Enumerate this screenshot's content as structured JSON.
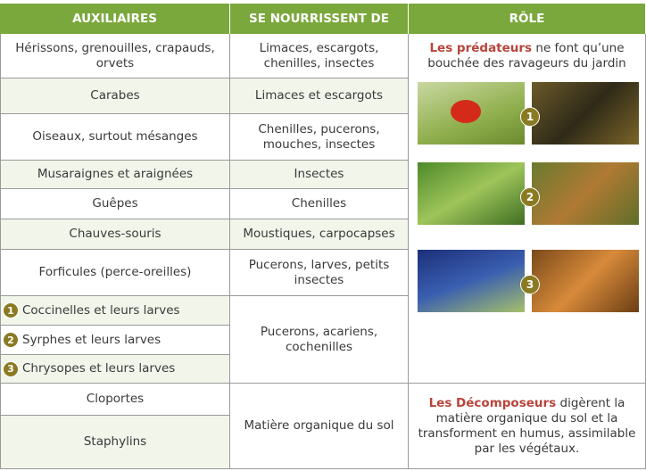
{
  "header": [
    "AUXILIAIRES",
    "SE NOURRISSENT DE",
    "RÔLE"
  ],
  "auxiliaries": [
    "Hérissons, grenouilles, crapauds, orvets",
    "Carabes",
    "Oiseaux, surtout mésanges",
    "Musaraignes et araignées",
    "Guêpes",
    "Chauves-souris",
    "Forficules (perce-oreilles)",
    "Coccinelles et leurs larves",
    "Syrphes et leurs larves",
    "Chrysopes et leurs larves",
    "Cloportes",
    "Staphylins"
  ],
  "badges": [
    "1",
    "2",
    "3"
  ],
  "food": [
    "Limaces, escargots, chenilles, insectes",
    "Limaces et escargots",
    "Chenilles, pucerons, mouches, insectes",
    "Insectes",
    "Chenilles",
    "Moustiques, carpocapses",
    "Pucerons, larves, petits insectes",
    "Pucerons, acariens, cochenilles",
    "Matière organique du sol"
  ],
  "roles": [
    {
      "bold": "Les prédateurs",
      "text": " ne font qu’une bouchée des ravageurs du jardin"
    },
    {
      "bold": "Les Décomposeurs",
      "text": " digèrent la matière organique du sol et la transforment en humus, assimilable par les végétaux."
    }
  ]
}
